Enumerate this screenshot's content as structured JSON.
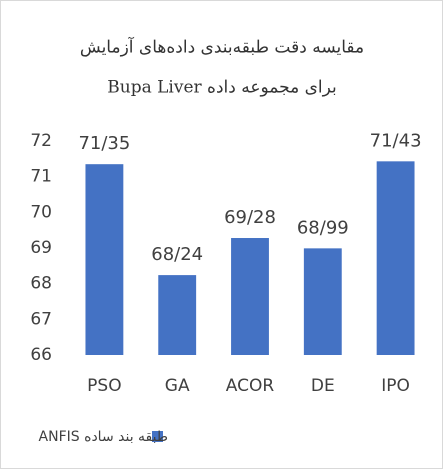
{
  "chart_data": {
    "type": "bar",
    "title": "مقایسه دقت طبقه‌بندی داده‌های آزمایش",
    "subtitle": "برای مجموعه داده Bupa Liver",
    "categories": [
      "PSO",
      "GA",
      "ACOR",
      "DE",
      "IPO"
    ],
    "series": [
      {
        "name": "طبقه بند ساده ANFIS",
        "color": "#4472c4",
        "values": [
          71.35,
          68.24,
          69.28,
          68.99,
          71.43
        ],
        "value_labels": [
          "71/35",
          "68/24",
          "69/28",
          "68/99",
          "71/43"
        ]
      }
    ],
    "ylim": [
      66,
      72
    ],
    "yticks": [
      66,
      67,
      68,
      69,
      70,
      71,
      72
    ],
    "grid": false,
    "legend": "bottom"
  }
}
